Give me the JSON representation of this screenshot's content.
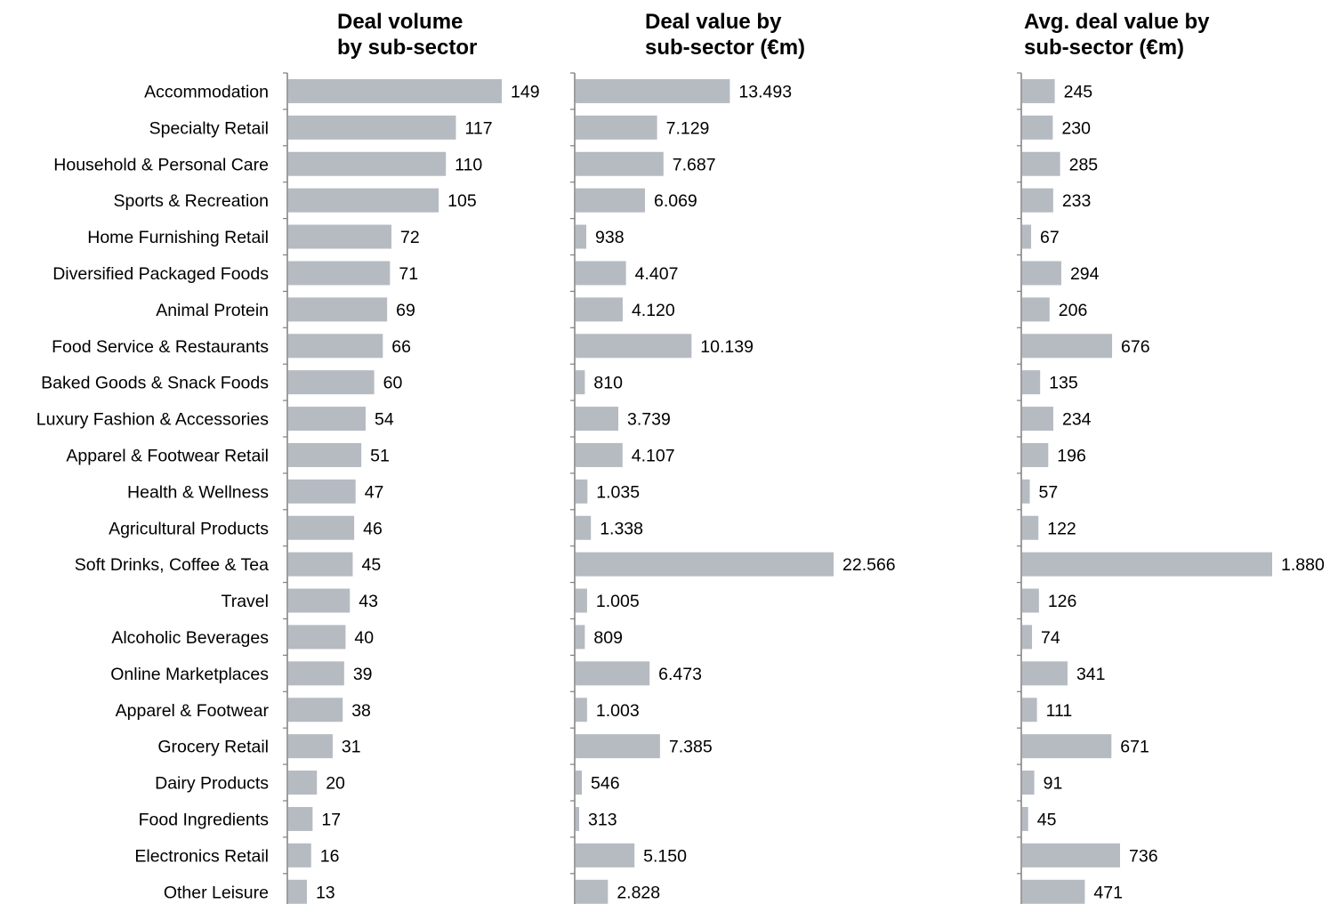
{
  "chart_data": {
    "type": "bar",
    "orientation": "horizontal",
    "categories": [
      "Accommodation",
      "Specialty Retail",
      "Household & Personal Care",
      "Sports & Recreation",
      "Home Furnishing Retail",
      "Diversified Packaged Foods",
      "Animal Protein",
      "Food Service & Restaurants",
      "Baked Goods & Snack Foods",
      "Luxury Fashion & Accessories",
      "Apparel & Footwear Retail",
      "Health & Wellness",
      "Agricultural Products",
      "Soft Drinks, Coffee & Tea",
      "Travel",
      "Alcoholic Beverages",
      "Online Marketplaces",
      "Apparel & Footwear",
      "Grocery Retail",
      "Dairy Products",
      "Food Ingredients",
      "Electronics Retail",
      "Other Leisure"
    ],
    "bar_color": "#b6bbc2",
    "panels": [
      {
        "title": "Deal volume\nby sub-sector",
        "values": [
          149,
          117,
          110,
          105,
          72,
          71,
          69,
          66,
          60,
          54,
          51,
          47,
          46,
          45,
          43,
          40,
          39,
          38,
          31,
          20,
          17,
          16,
          13
        ],
        "labels": [
          "149",
          "117",
          "110",
          "105",
          "72",
          "71",
          "69",
          "66",
          "60",
          "54",
          "51",
          "47",
          "46",
          "45",
          "43",
          "40",
          "39",
          "38",
          "31",
          "20",
          "17",
          "16",
          "13"
        ]
      },
      {
        "title": "Deal value by\nsub-sector (€m)",
        "values": [
          13493,
          7129,
          7687,
          6069,
          938,
          4407,
          4120,
          10139,
          810,
          3739,
          4107,
          1035,
          1338,
          22566,
          1005,
          809,
          6473,
          1003,
          7385,
          546,
          313,
          5150,
          2828
        ],
        "labels": [
          "13.493",
          "7.129",
          "7.687",
          "6.069",
          "938",
          "4.407",
          "4.120",
          "10.139",
          "810",
          "3.739",
          "4.107",
          "1.035",
          "1.338",
          "22.566",
          "1.005",
          "809",
          "6.473",
          "1.003",
          "7.385",
          "546",
          "313",
          "5.150",
          "2.828"
        ]
      },
      {
        "title": "Avg. deal value by\nsub-sector (€m)",
        "values": [
          245,
          230,
          285,
          233,
          67,
          294,
          206,
          676,
          135,
          234,
          196,
          57,
          122,
          1880,
          126,
          74,
          341,
          111,
          671,
          91,
          45,
          736,
          471
        ],
        "labels": [
          "245",
          "230",
          "285",
          "233",
          "67",
          "294",
          "206",
          "676",
          "135",
          "234",
          "196",
          "57",
          "122",
          "1.880",
          "126",
          "74",
          "341",
          "111",
          "671",
          "91",
          "45",
          "736",
          "471"
        ]
      }
    ],
    "xlabel": "",
    "ylabel": "",
    "grid": false,
    "legend": "none"
  }
}
